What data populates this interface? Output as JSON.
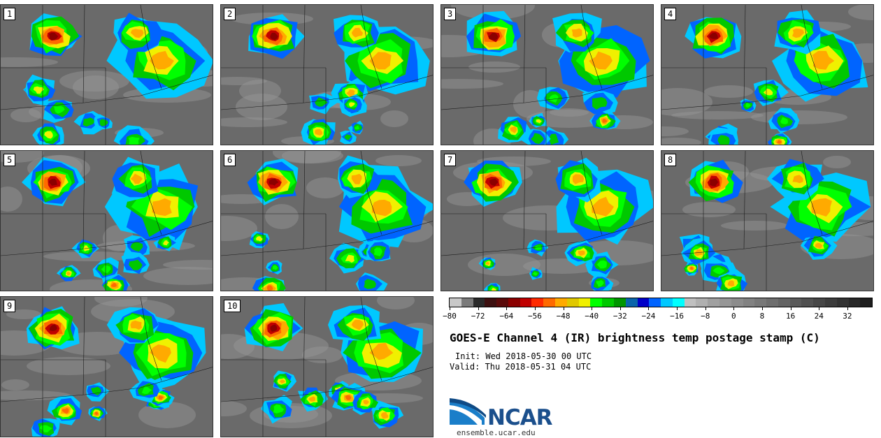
{
  "panels": [
    {
      "label": "1"
    },
    {
      "label": "2"
    },
    {
      "label": "3"
    },
    {
      "label": "4"
    },
    {
      "label": "5"
    },
    {
      "label": "6"
    },
    {
      "label": "7"
    },
    {
      "label": "8"
    },
    {
      "label": "9"
    },
    {
      "label": "10"
    }
  ],
  "colorbar": {
    "colors": [
      "#c8c8c8",
      "#7a7a7a",
      "#2a2a2a",
      "#3d1010",
      "#5a0a0a",
      "#8b0000",
      "#c00000",
      "#ff2a00",
      "#ff6a00",
      "#ffaa00",
      "#e0c800",
      "#f0f000",
      "#00ff00",
      "#00c800",
      "#009600",
      "#0a64aa",
      "#0000c8",
      "#0064ff",
      "#00c8ff",
      "#00ffff",
      "#c0c0c0",
      "#b0b0b0",
      "#a0a0a0",
      "#969696",
      "#8c8c8c",
      "#828282",
      "#787878",
      "#6e6e6e",
      "#646464",
      "#5a5a5a",
      "#505050",
      "#464646",
      "#3c3c3c",
      "#323232",
      "#282828",
      "#1e1e1e"
    ],
    "ticks": [
      "−80",
      "−72",
      "−64",
      "−56",
      "−48",
      "−40",
      "−32",
      "−24",
      "−16",
      "−8",
      "0",
      "8",
      "16",
      "24",
      "32"
    ]
  },
  "title": "GOES-E Channel 4 (IR) brightness temp postage stamp (C)",
  "init": "Init: Wed 2018-05-30 00 UTC",
  "valid": "Valid: Thu 2018-05-31 04 UTC",
  "logo_text": "NCAR",
  "url": "ensemble.ucar.edu"
}
